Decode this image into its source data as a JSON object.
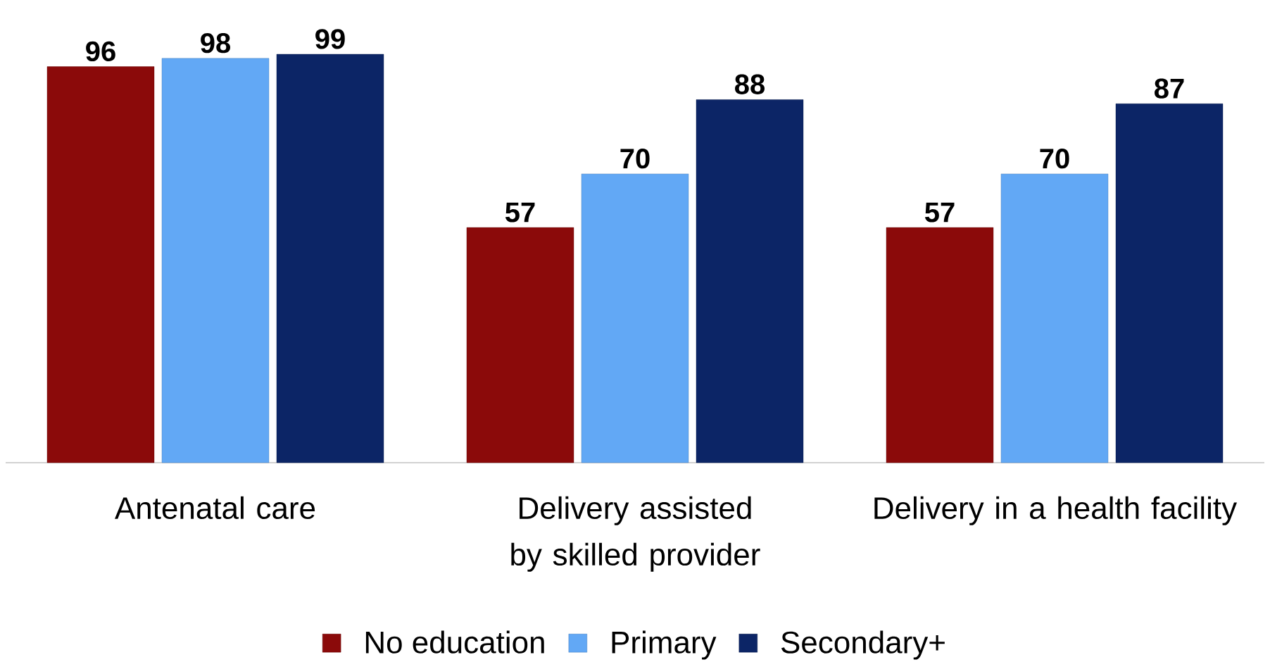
{
  "chart_data": {
    "type": "bar",
    "categories": [
      "Antenatal care",
      "Delivery assisted by skilled provider",
      "Delivery in a health facility"
    ],
    "series": [
      {
        "name": "No education",
        "color": "#8b0a0a",
        "values": [
          96,
          57,
          57
        ]
      },
      {
        "name": "Primary",
        "color": "#62a8f5",
        "values": [
          98,
          70,
          70
        ]
      },
      {
        "name": "Secondary+",
        "color": "#0c2566",
        "values": [
          99,
          88,
          87
        ]
      }
    ],
    "data_labels": true,
    "legend": "bottom"
  }
}
